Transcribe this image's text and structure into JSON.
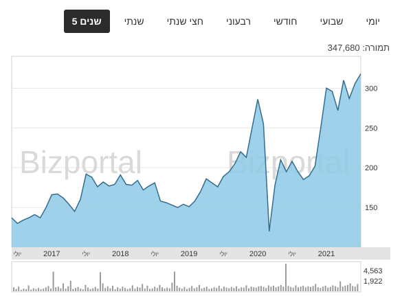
{
  "tabs": [
    {
      "id": "daily",
      "label": "יומי",
      "active": false
    },
    {
      "id": "weekly",
      "label": "שבועי",
      "active": false
    },
    {
      "id": "monthly",
      "label": "חודשי",
      "active": false
    },
    {
      "id": "quarterly",
      "label": "רבעוני",
      "active": false
    },
    {
      "id": "halfyear",
      "label": "חצי שנתי",
      "active": false
    },
    {
      "id": "yearly",
      "label": "שנתי",
      "active": false
    },
    {
      "id": "fiveyears",
      "label": "5 שנים",
      "active": true
    }
  ],
  "price": {
    "label": "תמורה:",
    "value": "347,680"
  },
  "watermark": {
    "left": "Bizportal",
    "right": "Bizportal"
  },
  "chart_data": {
    "type": "area",
    "x_axis": {
      "range": [
        "2016-06",
        "2021-07"
      ],
      "ticks": [
        {
          "label": "יולי",
          "pos": "2016-07",
          "minor": true
        },
        {
          "label": "2017",
          "pos": "2017-01",
          "minor": false
        },
        {
          "label": "יולי",
          "pos": "2017-07",
          "minor": true
        },
        {
          "label": "2018",
          "pos": "2018-01",
          "minor": false
        },
        {
          "label": "יולי",
          "pos": "2018-07",
          "minor": true
        },
        {
          "label": "2019",
          "pos": "2019-01",
          "minor": false
        },
        {
          "label": "יולי",
          "pos": "2019-07",
          "minor": true
        },
        {
          "label": "2020",
          "pos": "2020-01",
          "minor": false
        },
        {
          "label": "יולי",
          "pos": "2020-07",
          "minor": true
        },
        {
          "label": "2021",
          "pos": "2021-01",
          "minor": false
        }
      ]
    },
    "y_axis": {
      "range": [
        100,
        340
      ],
      "ticks": [
        150,
        200,
        250,
        300
      ]
    },
    "grid": true,
    "series": [
      {
        "values": [
          [
            "2016-06",
            137
          ],
          [
            "2016-07",
            130
          ],
          [
            "2016-08",
            134
          ],
          [
            "2016-09",
            137
          ],
          [
            "2016-10",
            141
          ],
          [
            "2016-11",
            137
          ],
          [
            "2016-12",
            150
          ],
          [
            "2017-01",
            166
          ],
          [
            "2017-02",
            167
          ],
          [
            "2017-03",
            162
          ],
          [
            "2017-04",
            154
          ],
          [
            "2017-05",
            145
          ],
          [
            "2017-06",
            160
          ],
          [
            "2017-07",
            192
          ],
          [
            "2017-08",
            188
          ],
          [
            "2017-09",
            176
          ],
          [
            "2017-10",
            182
          ],
          [
            "2017-11",
            177
          ],
          [
            "2017-12",
            179
          ],
          [
            "2018-01",
            191
          ],
          [
            "2018-02",
            179
          ],
          [
            "2018-03",
            178
          ],
          [
            "2018-04",
            184
          ],
          [
            "2018-05",
            172
          ],
          [
            "2018-06",
            177
          ],
          [
            "2018-07",
            181
          ],
          [
            "2018-08",
            158
          ],
          [
            "2018-09",
            156
          ],
          [
            "2018-10",
            153
          ],
          [
            "2018-11",
            150
          ],
          [
            "2018-12",
            154
          ],
          [
            "2019-01",
            151
          ],
          [
            "2019-02",
            158
          ],
          [
            "2019-03",
            170
          ],
          [
            "2019-04",
            186
          ],
          [
            "2019-05",
            181
          ],
          [
            "2019-06",
            176
          ],
          [
            "2019-07",
            189
          ],
          [
            "2019-08",
            195
          ],
          [
            "2019-09",
            205
          ],
          [
            "2019-10",
            220
          ],
          [
            "2019-11",
            213
          ],
          [
            "2019-12",
            250
          ],
          [
            "2020-01",
            286
          ],
          [
            "2020-02",
            255
          ],
          [
            "2020-03",
            120
          ],
          [
            "2020-04",
            178
          ],
          [
            "2020-05",
            210
          ],
          [
            "2020-06",
            195
          ],
          [
            "2020-07",
            208
          ],
          [
            "2020-08",
            195
          ],
          [
            "2020-09",
            185
          ],
          [
            "2020-10",
            190
          ],
          [
            "2020-11",
            202
          ],
          [
            "2020-12",
            250
          ],
          [
            "2021-01",
            300
          ],
          [
            "2021-02",
            296
          ],
          [
            "2021-03",
            272
          ],
          [
            "2021-04",
            310
          ],
          [
            "2021-05",
            287
          ],
          [
            "2021-06",
            306
          ],
          [
            "2021-07",
            318
          ]
        ],
        "fill": "#8ecae6",
        "line": "#2f6c8f"
      }
    ],
    "volume": {
      "labels": [
        "4,563",
        "1,922"
      ],
      "values": [
        60,
        35,
        70,
        20,
        40,
        30,
        90,
        25,
        45,
        35,
        50,
        30,
        40,
        60,
        80,
        40,
        300,
        60,
        70,
        45,
        120,
        40,
        75,
        160,
        35,
        50,
        65,
        40,
        30,
        95,
        55,
        35,
        45,
        65,
        40,
        290,
        120,
        50,
        75,
        45,
        85,
        30,
        60,
        40,
        70,
        50,
        35,
        45,
        90,
        40,
        65,
        55,
        110,
        40,
        85,
        35,
        45,
        70,
        50,
        95,
        60,
        40,
        55,
        45,
        130,
        300,
        85,
        55,
        40,
        65,
        35,
        50,
        80,
        45,
        60,
        95,
        40,
        55,
        70,
        35,
        45,
        60,
        50,
        85,
        40,
        70,
        55,
        45,
        65,
        50,
        75,
        40,
        60,
        55,
        90,
        45,
        70,
        60,
        55,
        75,
        80,
        65,
        50,
        90,
        70,
        85,
        60,
        75,
        95,
        70,
        420,
        80,
        65,
        55,
        90,
        60,
        70,
        85,
        60,
        75,
        65,
        80,
        110,
        60,
        50,
        70,
        85,
        55,
        65,
        90,
        75,
        60,
        150,
        70,
        85,
        95,
        120,
        80,
        70,
        110
      ]
    }
  }
}
